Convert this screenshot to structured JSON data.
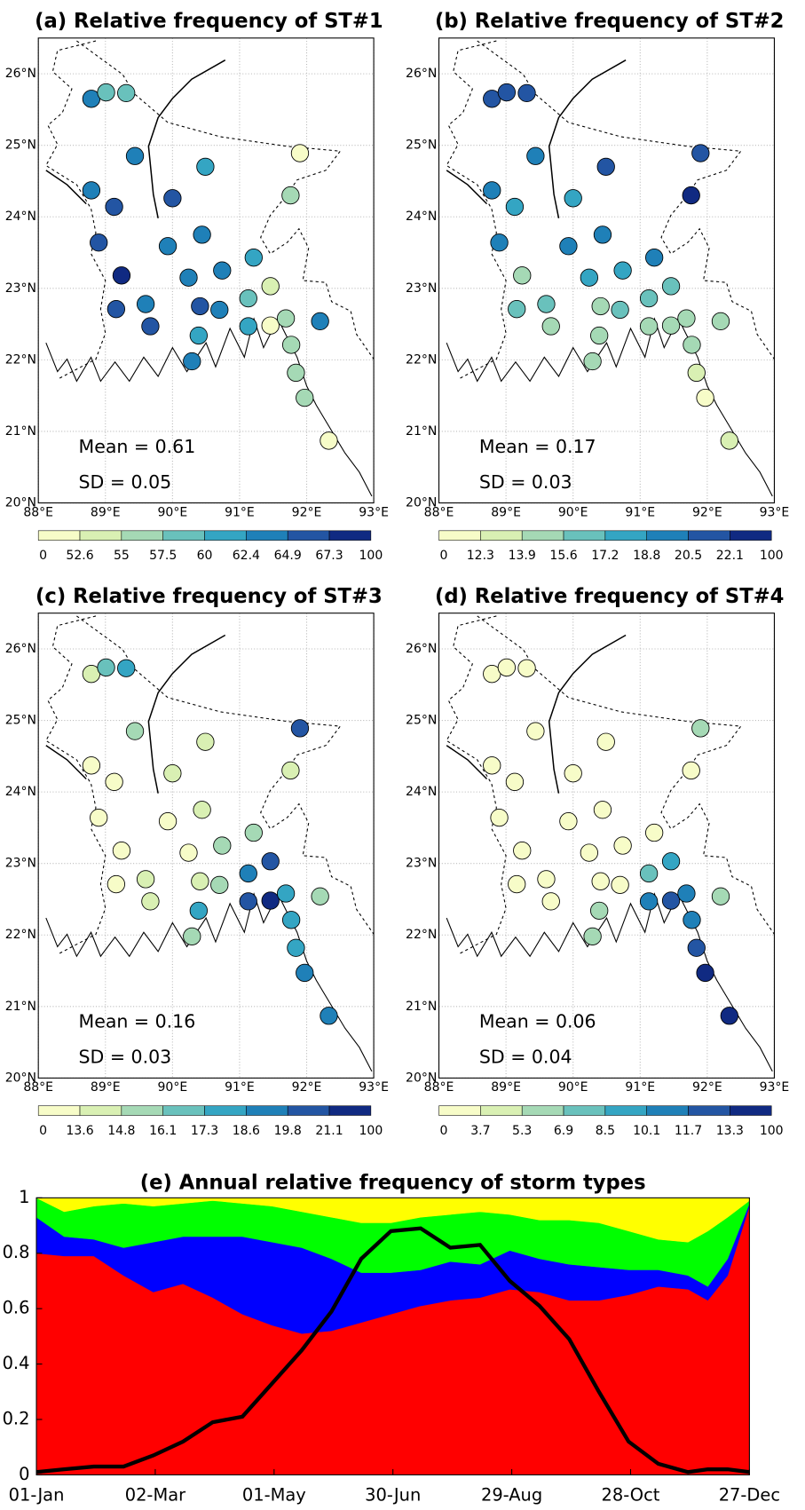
{
  "chart_data": [
    {
      "type": "map",
      "title": "(a) Relative frequency of ST#1",
      "annotations": [
        "Mean = 0.61",
        "SD = 0.05"
      ],
      "xlim": [
        88,
        93
      ],
      "ylim": [
        20,
        26.5
      ],
      "xticks": [
        {
          "value": 88,
          "label": "88°E"
        },
        {
          "value": 89,
          "label": "89°E"
        },
        {
          "value": 90,
          "label": "90°E"
        },
        {
          "value": 91,
          "label": "91°E"
        },
        {
          "value": 92,
          "label": "92°E"
        },
        {
          "value": 93,
          "label": "93°E"
        }
      ],
      "yticks": [
        {
          "value": 20,
          "label": "20°N"
        },
        {
          "value": 21,
          "label": "21°N"
        },
        {
          "value": 22,
          "label": "22°N"
        },
        {
          "value": 23,
          "label": "23°N"
        },
        {
          "value": 24,
          "label": "24°N"
        },
        {
          "value": 25,
          "label": "25°N"
        },
        {
          "value": 26,
          "label": "26°N"
        }
      ],
      "grid": true,
      "x": [
        88.79,
        89.01,
        89.31,
        89.44,
        90.49,
        91.9,
        88.79,
        89.13,
        90.0,
        91.76,
        88.9,
        89.93,
        90.44,
        89.24,
        90.24,
        90.74,
        91.21,
        91.46,
        89.16,
        89.6,
        89.67,
        90.41,
        90.7,
        90.39,
        90.29,
        91.13,
        91.13,
        91.46,
        91.69,
        92.2,
        91.77,
        91.84,
        91.97,
        92.33
      ],
      "y": [
        25.65,
        25.74,
        25.73,
        24.85,
        24.7,
        24.89,
        24.37,
        24.14,
        24.26,
        24.3,
        23.64,
        23.59,
        23.75,
        23.18,
        23.15,
        23.25,
        23.43,
        23.03,
        22.71,
        22.78,
        22.47,
        22.75,
        22.7,
        22.34,
        21.98,
        22.86,
        22.47,
        22.48,
        22.58,
        22.54,
        22.21,
        21.82,
        21.47,
        20.87
      ],
      "values": [
        63.6,
        58.7,
        58.7,
        63.6,
        61.2,
        51.4,
        63.6,
        66.1,
        66.1,
        56.2,
        66.1,
        63.6,
        63.6,
        68.5,
        63.6,
        63.6,
        61.2,
        53.8,
        66.1,
        63.6,
        66.1,
        66.1,
        63.6,
        61.2,
        63.6,
        58.7,
        61.2,
        51.4,
        56.2,
        63.6,
        56.2,
        56.2,
        56.2,
        51.4
      ],
      "colorbar_ticks": [
        0,
        52.6,
        55,
        57.5,
        60,
        62.4,
        64.9,
        67.3,
        100
      ],
      "colors": [
        "#f7fcc8",
        "#d9f0b3",
        "#a5d9b5",
        "#69c1bc",
        "#34a5c3",
        "#1f80b8",
        "#2355a3",
        "#102a82"
      ]
    },
    {
      "type": "map",
      "title": "(b) Relative frequency of ST#2",
      "annotations": [
        "Mean = 0.17",
        "SD = 0.03"
      ],
      "xlim": [
        88,
        93
      ],
      "ylim": [
        20,
        26.5
      ],
      "xticks": [
        {
          "value": 88,
          "label": "88°E"
        },
        {
          "value": 89,
          "label": "89°E"
        },
        {
          "value": 90,
          "label": "90°E"
        },
        {
          "value": 91,
          "label": "91°E"
        },
        {
          "value": 92,
          "label": "92°E"
        },
        {
          "value": 93,
          "label": "93°E"
        }
      ],
      "yticks": [
        {
          "value": 20,
          "label": "20°N"
        },
        {
          "value": 21,
          "label": "21°N"
        },
        {
          "value": 22,
          "label": "22°N"
        },
        {
          "value": 23,
          "label": "23°N"
        },
        {
          "value": 24,
          "label": "24°N"
        },
        {
          "value": 25,
          "label": "25°N"
        },
        {
          "value": 26,
          "label": "26°N"
        }
      ],
      "grid": true,
      "x": [
        88.79,
        89.01,
        89.31,
        89.44,
        90.49,
        91.9,
        88.79,
        89.13,
        90.0,
        91.76,
        88.9,
        89.93,
        90.44,
        89.24,
        90.24,
        90.74,
        91.21,
        91.46,
        89.16,
        89.6,
        89.67,
        90.41,
        90.7,
        90.39,
        90.29,
        91.13,
        91.13,
        91.46,
        91.69,
        92.2,
        91.77,
        91.84,
        91.97,
        92.33
      ],
      "y": [
        25.65,
        25.74,
        25.73,
        24.85,
        24.7,
        24.89,
        24.37,
        24.14,
        24.26,
        24.3,
        23.64,
        23.59,
        23.75,
        23.18,
        23.15,
        23.25,
        23.43,
        23.03,
        22.71,
        22.78,
        22.47,
        22.75,
        22.7,
        22.34,
        21.98,
        22.86,
        22.47,
        22.48,
        22.58,
        22.54,
        22.21,
        21.82,
        21.47,
        20.87
      ],
      "values": [
        21.3,
        21.3,
        21.3,
        19.6,
        21.3,
        21.3,
        19.6,
        18.0,
        18.0,
        22.9,
        19.6,
        19.6,
        19.6,
        14.7,
        18.0,
        18.0,
        19.6,
        16.4,
        16.4,
        16.4,
        14.7,
        14.7,
        16.4,
        14.7,
        14.7,
        16.4,
        14.7,
        14.7,
        14.7,
        14.7,
        14.7,
        13.1,
        11.5,
        13.1
      ],
      "colorbar_ticks": [
        0,
        12.3,
        13.9,
        15.6,
        17.2,
        18.8,
        20.5,
        22.1,
        100
      ],
      "colors": [
        "#f7fcc8",
        "#d9f0b3",
        "#a5d9b5",
        "#69c1bc",
        "#34a5c3",
        "#1f80b8",
        "#2355a3",
        "#102a82"
      ]
    },
    {
      "type": "map",
      "title": "(c) Relative frequency of ST#3",
      "annotations": [
        "Mean = 0.16",
        "SD = 0.03"
      ],
      "xlim": [
        88,
        93
      ],
      "ylim": [
        20,
        26.5
      ],
      "xticks": [
        {
          "value": 88,
          "label": "88°E"
        },
        {
          "value": 89,
          "label": "89°E"
        },
        {
          "value": 90,
          "label": "90°E"
        },
        {
          "value": 91,
          "label": "91°E"
        },
        {
          "value": 92,
          "label": "92°E"
        },
        {
          "value": 93,
          "label": "93°E"
        }
      ],
      "yticks": [
        {
          "value": 20,
          "label": "20°N"
        },
        {
          "value": 21,
          "label": "21°N"
        },
        {
          "value": 22,
          "label": "22°N"
        },
        {
          "value": 23,
          "label": "23°N"
        },
        {
          "value": 24,
          "label": "24°N"
        },
        {
          "value": 25,
          "label": "25°N"
        },
        {
          "value": 26,
          "label": "26°N"
        }
      ],
      "grid": true,
      "x": [
        88.79,
        89.01,
        89.31,
        89.44,
        90.49,
        91.9,
        88.79,
        89.13,
        90.0,
        91.76,
        88.9,
        89.93,
        90.44,
        89.24,
        90.24,
        90.74,
        91.21,
        91.46,
        89.16,
        89.6,
        89.67,
        90.41,
        90.7,
        90.39,
        90.29,
        91.13,
        91.13,
        91.46,
        91.69,
        92.2,
        91.77,
        91.84,
        91.97,
        92.33
      ],
      "y": [
        25.65,
        25.74,
        25.73,
        24.85,
        24.7,
        24.89,
        24.37,
        24.14,
        24.26,
        24.3,
        23.64,
        23.59,
        23.75,
        23.18,
        23.15,
        23.25,
        23.43,
        23.03,
        22.71,
        22.78,
        22.47,
        22.75,
        22.7,
        22.34,
        21.98,
        22.86,
        22.47,
        22.48,
        22.58,
        22.54,
        22.21,
        21.82,
        21.47,
        20.87
      ],
      "values": [
        14.2,
        16.7,
        17.9,
        15.4,
        14.2,
        20.4,
        13.0,
        13.0,
        14.2,
        14.2,
        13.0,
        13.0,
        14.2,
        13.0,
        13.0,
        15.4,
        15.4,
        20.4,
        13.0,
        14.2,
        14.2,
        14.2,
        15.4,
        17.9,
        15.4,
        19.2,
        20.4,
        21.7,
        17.9,
        15.4,
        17.9,
        17.9,
        19.2,
        19.2
      ],
      "colorbar_ticks": [
        0,
        13.6,
        14.8,
        16.1,
        17.3,
        18.6,
        19.8,
        21.1,
        100
      ],
      "colors": [
        "#f7fcc8",
        "#d9f0b3",
        "#a5d9b5",
        "#69c1bc",
        "#34a5c3",
        "#1f80b8",
        "#2355a3",
        "#102a82"
      ]
    },
    {
      "type": "map",
      "title": "(d) Relative frequency of ST#4",
      "annotations": [
        "Mean = 0.06",
        "SD = 0.04"
      ],
      "xlim": [
        88,
        93
      ],
      "ylim": [
        20,
        26.5
      ],
      "xticks": [
        {
          "value": 88,
          "label": "88°E"
        },
        {
          "value": 89,
          "label": "89°E"
        },
        {
          "value": 90,
          "label": "90°E"
        },
        {
          "value": 91,
          "label": "91°E"
        },
        {
          "value": 92,
          "label": "92°E"
        },
        {
          "value": 93,
          "label": "93°E"
        }
      ],
      "yticks": [
        {
          "value": 20,
          "label": "20°N"
        },
        {
          "value": 21,
          "label": "21°N"
        },
        {
          "value": 22,
          "label": "22°N"
        },
        {
          "value": 23,
          "label": "23°N"
        },
        {
          "value": 24,
          "label": "24°N"
        },
        {
          "value": 25,
          "label": "25°N"
        },
        {
          "value": 26,
          "label": "26°N"
        }
      ],
      "grid": true,
      "x": [
        88.79,
        89.01,
        89.31,
        89.44,
        90.49,
        91.9,
        88.79,
        89.13,
        90.0,
        91.76,
        88.9,
        89.93,
        90.44,
        89.24,
        90.24,
        90.74,
        91.21,
        91.46,
        89.16,
        89.6,
        89.67,
        90.41,
        90.7,
        90.39,
        90.29,
        91.13,
        91.13,
        91.46,
        91.69,
        92.2,
        91.77,
        91.84,
        91.97,
        92.33
      ],
      "y": [
        25.65,
        25.74,
        25.73,
        24.85,
        24.7,
        24.89,
        24.37,
        24.14,
        24.26,
        24.3,
        23.64,
        23.59,
        23.75,
        23.18,
        23.15,
        23.25,
        23.43,
        23.03,
        22.71,
        22.78,
        22.47,
        22.75,
        22.7,
        22.34,
        21.98,
        22.86,
        22.47,
        22.48,
        22.58,
        22.54,
        22.21,
        21.82,
        21.47,
        20.87
      ],
      "values": [
        2.5,
        2.5,
        2.5,
        2.5,
        2.5,
        6.1,
        2.5,
        2.5,
        2.5,
        2.5,
        2.5,
        2.5,
        2.5,
        2.5,
        2.5,
        2.5,
        2.5,
        9.3,
        2.5,
        2.5,
        2.5,
        2.5,
        2.5,
        6.1,
        6.1,
        7.7,
        10.9,
        12.5,
        10.9,
        6.1,
        10.9,
        12.5,
        14.1,
        14.1
      ],
      "colorbar_ticks": [
        0,
        3.7,
        5.3,
        6.9,
        8.5,
        10.1,
        11.7,
        13.3,
        100
      ],
      "colors": [
        "#f7fcc8",
        "#d9f0b3",
        "#a5d9b5",
        "#69c1bc",
        "#34a5c3",
        "#1f80b8",
        "#2355a3",
        "#102a82"
      ]
    },
    {
      "type": "area",
      "title": "(e) Annual relative frequency of storm types",
      "xlim": [
        1,
        361
      ],
      "ylim": [
        0,
        1
      ],
      "xticks": [
        {
          "value": 1,
          "label": "01-Jan"
        },
        {
          "value": 61,
          "label": "02-Mar"
        },
        {
          "value": 121,
          "label": "01-May"
        },
        {
          "value": 181,
          "label": "30-Jun"
        },
        {
          "value": 241,
          "label": "29-Aug"
        },
        {
          "value": 301,
          "label": "28-Oct"
        },
        {
          "value": 361,
          "label": "27-Dec"
        }
      ],
      "yticks": [
        0,
        0.2,
        0.4,
        0.6,
        0.8,
        1
      ],
      "x": [
        1,
        15,
        30,
        45,
        60,
        75,
        90,
        105,
        120,
        135,
        150,
        165,
        180,
        195,
        210,
        225,
        240,
        255,
        270,
        285,
        300,
        315,
        330,
        340,
        350,
        361
      ],
      "series": [
        {
          "color": "#ff0000",
          "values": [
            0.8,
            0.79,
            0.79,
            0.72,
            0.66,
            0.69,
            0.64,
            0.58,
            0.54,
            0.51,
            0.52,
            0.55,
            0.58,
            0.61,
            0.63,
            0.64,
            0.67,
            0.66,
            0.63,
            0.63,
            0.65,
            0.68,
            0.67,
            0.63,
            0.72,
            0.97
          ]
        },
        {
          "color": "#0000ff",
          "values": [
            0.13,
            0.07,
            0.06,
            0.1,
            0.18,
            0.17,
            0.22,
            0.28,
            0.3,
            0.31,
            0.26,
            0.18,
            0.15,
            0.13,
            0.14,
            0.12,
            0.14,
            0.12,
            0.13,
            0.12,
            0.09,
            0.06,
            0.05,
            0.05,
            0.06,
            0.01
          ]
        },
        {
          "color": "#00ff00",
          "values": [
            0.07,
            0.09,
            0.12,
            0.16,
            0.13,
            0.12,
            0.13,
            0.12,
            0.13,
            0.13,
            0.15,
            0.18,
            0.18,
            0.19,
            0.17,
            0.19,
            0.13,
            0.14,
            0.16,
            0.16,
            0.14,
            0.11,
            0.12,
            0.2,
            0.15,
            0.01
          ]
        },
        {
          "color": "#ffff00",
          "values": [
            0.0,
            0.05,
            0.03,
            0.02,
            0.03,
            0.02,
            0.01,
            0.02,
            0.03,
            0.05,
            0.07,
            0.09,
            0.09,
            0.07,
            0.06,
            0.05,
            0.06,
            0.08,
            0.08,
            0.09,
            0.12,
            0.15,
            0.16,
            0.12,
            0.07,
            0.01
          ]
        },
        {
          "type": "line",
          "color": "#000000",
          "values": [
            0.01,
            0.02,
            0.03,
            0.03,
            0.07,
            0.12,
            0.19,
            0.21,
            0.33,
            0.45,
            0.59,
            0.78,
            0.88,
            0.89,
            0.82,
            0.83,
            0.7,
            0.61,
            0.49,
            0.3,
            0.12,
            0.04,
            0.01,
            0.02,
            0.02,
            0.01
          ]
        }
      ]
    }
  ]
}
